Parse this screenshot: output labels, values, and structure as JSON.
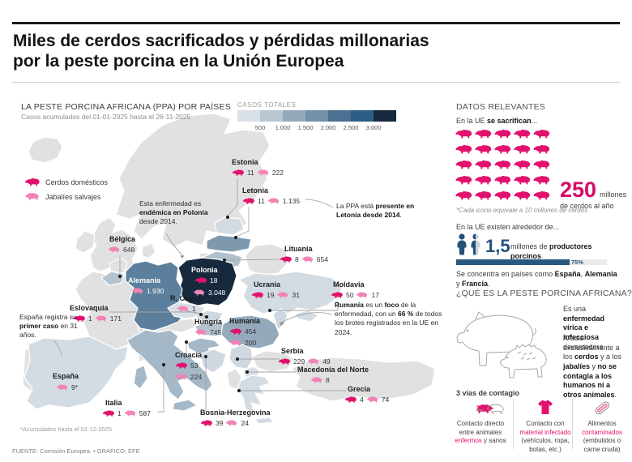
{
  "colors": {
    "accent_pink": "#e2116e",
    "light_pink": "#f184b5",
    "bar_blue": "#29587e",
    "navy": "#16293d",
    "scale": [
      "#d9dfe6",
      "#bac7d3",
      "#94a9bb",
      "#7591a9",
      "#4a7092",
      "#2d5f86",
      "#16293d"
    ]
  },
  "header": {
    "title_line1": "Miles de cerdos sacrificados y pérdidas millonarias",
    "title_line2": "por la peste porcina en la Unión Europea"
  },
  "map_section": {
    "heading": "LA PESTE PORCINA AFRICANA (PPA) POR PAÍSES",
    "subheading": "Casos acumulados del 01-01-2025 hasta el 26-11-2025",
    "legend_domestic": "Cerdos domésticos",
    "legend_wild": "Jabalíes salvajes",
    "footnote": "*Acumulados hasta el 02-12-2025"
  },
  "scale": {
    "label": "CASOS TOTALES",
    "ticks": [
      "500",
      "1.000",
      "1.500",
      "2.000",
      "2.500",
      "3.000"
    ]
  },
  "markers": [
    {
      "name": "Estonia",
      "pig": "11",
      "boar": "222"
    },
    {
      "name": "Letonia",
      "pig": "11",
      "boar": "1.135"
    },
    {
      "name": "Lituania",
      "pig": "8",
      "boar": "654"
    },
    {
      "name": "Polonia",
      "pig": "18",
      "boar": "3.048"
    },
    {
      "name": "Alemania",
      "boar": "1.930"
    },
    {
      "name": "Bélgica",
      "boar": "648"
    },
    {
      "name": "R. Checa",
      "boar": "1"
    },
    {
      "name": "Eslovaquia",
      "pig": "1",
      "boar": "171"
    },
    {
      "name": "Hungría",
      "boar": "745"
    },
    {
      "name": "Rumanía",
      "pig": "454",
      "boar": "200"
    },
    {
      "name": "Ucrania",
      "pig": "19",
      "boar": "31"
    },
    {
      "name": "Moldavia",
      "pig": "50",
      "boar": "17"
    },
    {
      "name": "Serbia",
      "pig": "229",
      "boar": "49"
    },
    {
      "name": "Macedonia del Norte",
      "boar": "8"
    },
    {
      "name": "Grecia",
      "pig": "4",
      "boar": "74"
    },
    {
      "name": "Bosnia-Herzegovina",
      "pig": "39",
      "boar": "24"
    },
    {
      "name": "Croacia",
      "pig": "53",
      "boar": "224"
    },
    {
      "name": "España",
      "boar": "9*"
    },
    {
      "name": "Italia",
      "pig": "1",
      "boar": "587"
    }
  ],
  "annotations": {
    "poland": [
      {
        "t": "Esta enfermedad es "
      },
      {
        "t": "endémica en Polonia",
        "b": 1
      },
      {
        "t": " desde 2014."
      }
    ],
    "latvia": [
      {
        "t": "La PPA está "
      },
      {
        "t": "presente en Letonia desde 2014",
        "b": 1
      },
      {
        "t": "."
      }
    ],
    "spain": [
      {
        "t": "España registra su "
      },
      {
        "t": "primer caso",
        "b": 1
      },
      {
        "t": " en 31 años."
      }
    ],
    "romania": [
      {
        "t": "Rumanía",
        "b": 1
      },
      {
        "t": " es un "
      },
      {
        "t": "foco",
        "b": 1
      },
      {
        "t": " de la enfermedad, con un "
      },
      {
        "t": "66 %",
        "b": 1
      },
      {
        "t": " de todos los brotes registrados en la UE en 2024."
      }
    ]
  },
  "datos": {
    "heading": "DATOS RELEVANTES",
    "sacrifice_intro": [
      {
        "t": "En la UE "
      },
      {
        "t": "se sacrifican",
        "b": 1
      },
      {
        "t": "..."
      }
    ],
    "pig_count": 25,
    "big_number": "250",
    "big_unit": "millones",
    "big_caption": "de cerdos al año",
    "icon_note": "*Cada icono equivale a 10 millones de cerdos",
    "producers_intro": "En la UE existen alrededor de...",
    "producers_number": "1,5",
    "producers_caption": [
      {
        "t": "millones de "
      },
      {
        "t": "productores porcinos",
        "b": 1
      }
    ],
    "bar_pct": 75,
    "bar_label": "75%",
    "concentra": [
      {
        "t": "Se concentra en países como "
      },
      {
        "t": "España",
        "b": 1
      },
      {
        "t": ", "
      },
      {
        "t": "Alemania",
        "b": 1
      },
      {
        "t": " y "
      },
      {
        "t": "Francia",
        "b": 1
      },
      {
        "t": "."
      }
    ],
    "what_heading": "¿QUÉ ES LA PESTE PORCINA AFRICANA?",
    "what_p1": [
      {
        "t": "Es una "
      },
      {
        "t": "enfermedad vírica e infecciosa",
        "b": 1
      },
      {
        "t": " devastadora."
      }
    ],
    "what_p2": [
      {
        "t": "Afecta exclusivamente a los "
      },
      {
        "t": "cerdos",
        "b": 1
      },
      {
        "t": " y a los "
      },
      {
        "t": "jabalíes",
        "b": 1
      },
      {
        "t": " y "
      },
      {
        "t": "no se contagia a los humanos ni a otros animales",
        "b": 1
      },
      {
        "t": "."
      }
    ],
    "vias_heading": "3 vías de contagio",
    "via1": [
      {
        "t": "Contacto directo entre animales "
      },
      {
        "t": "enfermos",
        "c": "pink"
      },
      {
        "t": " y sanos"
      }
    ],
    "via2": [
      {
        "t": "Contacto con "
      },
      {
        "t": "material infectado",
        "c": "pink"
      },
      {
        "t": " (vehículos, ropa, botas, etc.)"
      }
    ],
    "via3": [
      {
        "t": "Alimentos "
      },
      {
        "t": "contaminados",
        "c": "pink"
      },
      {
        "t": " (embutidos o carne cruda)"
      }
    ]
  },
  "footer": "FUENTE: Comisión Europea. • GRÁFICO: EFE"
}
